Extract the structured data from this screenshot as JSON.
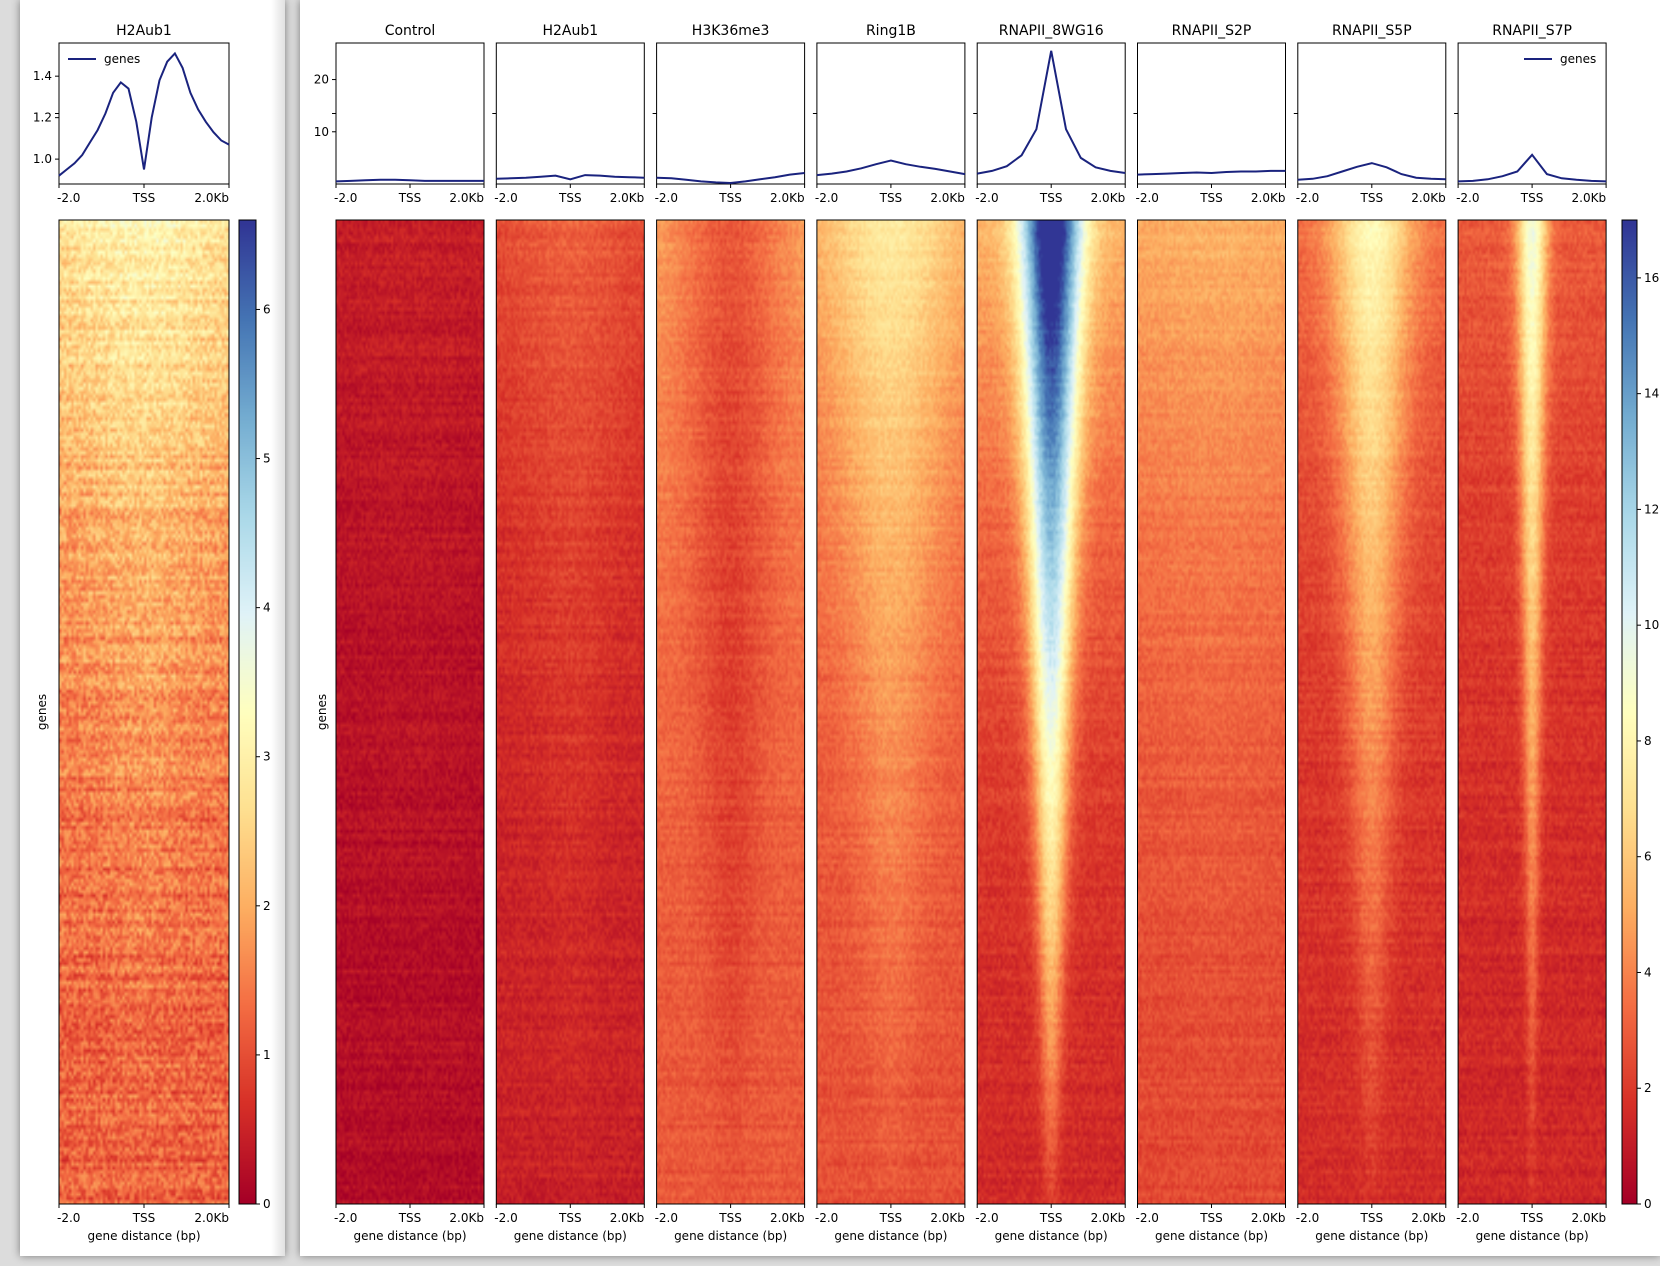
{
  "chart_data": [
    {
      "type": "heatmap",
      "panel": "left",
      "row_label": "genes",
      "x_ticks": [
        "-2.0",
        "TSS",
        "2.0Kb"
      ],
      "xlabel": "gene distance (bp)",
      "profile_yticks": [
        "1.0",
        "1.2",
        "1.4"
      ],
      "profile_ylim": [
        0.88,
        1.56
      ],
      "legend_label": "genes",
      "colorbar_ticks": [
        "0",
        "1",
        "2",
        "3",
        "4",
        "5",
        "6"
      ],
      "colorbar_range": [
        0,
        6.6
      ],
      "samples": [
        {
          "name": "H2Aub1",
          "profile": [
            0.92,
            0.95,
            0.98,
            1.02,
            1.08,
            1.14,
            1.22,
            1.32,
            1.37,
            1.34,
            1.18,
            0.95,
            1.2,
            1.38,
            1.47,
            1.51,
            1.44,
            1.32,
            1.24,
            1.18,
            1.13,
            1.09,
            1.07
          ],
          "heat": {
            "base": 1.2,
            "top": 3.6,
            "tss": 0.5,
            "width": 0.22,
            "center_offset": 0.0
          }
        }
      ]
    },
    {
      "type": "heatmap",
      "panel": "right",
      "row_label": "genes",
      "x_ticks": [
        "-2.0",
        "TSS",
        "2.0Kb"
      ],
      "xlabel": "gene distance (bp)",
      "profile_yticks": [
        "10",
        "20"
      ],
      "profile_ylim": [
        0,
        27
      ],
      "legend_label": "genes",
      "colorbar_ticks": [
        "0",
        "2",
        "4",
        "6",
        "8",
        "10",
        "12",
        "14",
        "16"
      ],
      "colorbar_range": [
        0,
        17
      ],
      "samples": [
        {
          "name": "Control",
          "profile": [
            0.5,
            0.6,
            0.7,
            0.8,
            0.8,
            0.7,
            0.6,
            0.6,
            0.6,
            0.6,
            0.6
          ],
          "heat": {
            "base": 0.5,
            "top": 1.2,
            "tss": 0.2,
            "width": 0.3,
            "center_offset": 0.0
          }
        },
        {
          "name": "H2Aub1",
          "profile": [
            1.0,
            1.1,
            1.2,
            1.4,
            1.6,
            0.9,
            1.7,
            1.6,
            1.4,
            1.3,
            1.2
          ],
          "heat": {
            "base": 1.2,
            "top": 3.0,
            "tss": 0.8,
            "width": 0.2,
            "center_offset": 0.0
          }
        },
        {
          "name": "H3K36me3",
          "profile": [
            1.2,
            1.1,
            0.8,
            0.5,
            0.3,
            0.2,
            0.5,
            0.9,
            1.3,
            1.8,
            2.1
          ],
          "heat": {
            "base": 2.8,
            "top": 6.5,
            "tss": -2.2,
            "width": 0.18,
            "center_offset": 0.0
          }
        },
        {
          "name": "Ring1B",
          "profile": [
            1.7,
            2.0,
            2.4,
            3.0,
            3.8,
            4.5,
            3.8,
            3.3,
            2.9,
            2.4,
            1.9
          ],
          "heat": {
            "base": 2.6,
            "top": 6.0,
            "tss": 2.8,
            "width": 0.22,
            "center_offset": 0.0
          }
        },
        {
          "name": "RNAPII_8WG16",
          "profile": [
            2.0,
            2.5,
            3.4,
            5.5,
            10.5,
            25.5,
            10.5,
            5.0,
            3.2,
            2.5,
            2.1
          ],
          "heat": {
            "base": 1.5,
            "top": 8.0,
            "tss": 14.0,
            "width": 0.1,
            "center_offset": 0.0
          }
        },
        {
          "name": "RNAPII_S2P",
          "profile": [
            1.8,
            1.9,
            2.0,
            2.1,
            2.2,
            2.1,
            2.3,
            2.4,
            2.4,
            2.5,
            2.5
          ],
          "heat": {
            "base": 2.4,
            "top": 6.5,
            "tss": 0.5,
            "width": 0.3,
            "center_offset": 0.3
          }
        },
        {
          "name": "RNAPII_S5P",
          "profile": [
            0.8,
            1.0,
            1.5,
            2.4,
            3.3,
            4.0,
            3.2,
            1.9,
            1.2,
            1.0,
            0.9
          ],
          "heat": {
            "base": 1.6,
            "top": 4.5,
            "tss": 5.0,
            "width": 0.13,
            "center_offset": 0.0
          }
        },
        {
          "name": "RNAPII_S7P",
          "profile": [
            0.5,
            0.6,
            0.9,
            1.5,
            2.4,
            5.6,
            1.9,
            1.1,
            0.8,
            0.6,
            0.5
          ],
          "heat": {
            "base": 1.4,
            "top": 4.0,
            "tss": 6.5,
            "width": 0.05,
            "center_offset": 0.0
          }
        }
      ]
    }
  ],
  "colors": {
    "line": "#1a237e",
    "frame": "#000000",
    "colormap": [
      "#a50026",
      "#d73027",
      "#f46d43",
      "#fdae61",
      "#fee090",
      "#ffffbf",
      "#e0f3f8",
      "#abd9e9",
      "#74add1",
      "#4575b4",
      "#313695"
    ]
  }
}
